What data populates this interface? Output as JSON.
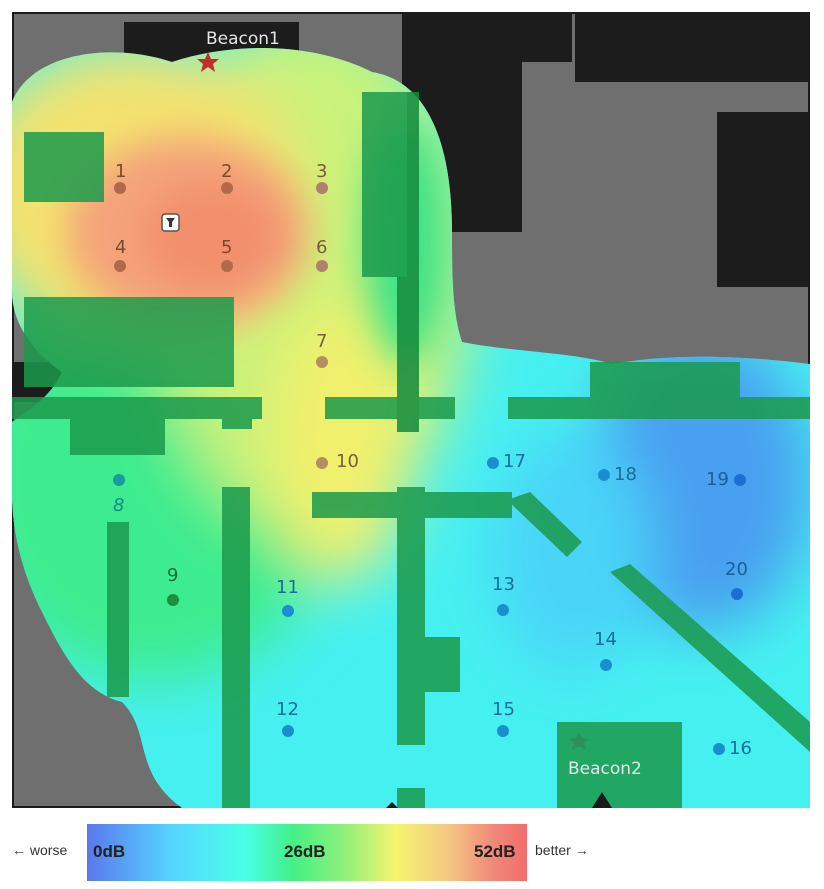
{
  "map": {
    "beacons": [
      {
        "id": "beacon1",
        "label": "Beacon1"
      },
      {
        "id": "beacon2",
        "label": "Beacon2"
      }
    ],
    "points": [
      "1",
      "2",
      "3",
      "4",
      "5",
      "6",
      "7",
      "8",
      "9",
      "10",
      "11",
      "12",
      "13",
      "14",
      "15",
      "16",
      "17",
      "18",
      "19",
      "20"
    ],
    "colors": {
      "wall_dark": "#1c1c1c",
      "floor_gray": "#707070",
      "strong_signal": "#f0906a",
      "medium_signal": "#f4f06c",
      "good_signal": "#3ff08a",
      "weak_signal": "#44f4f4",
      "poor_signal": "#4aa0f0",
      "point_strong": "#b06a4a",
      "point_mid": "#1f8f3f",
      "point_weak": "#1a8fd0",
      "beacon_marker": "#c0302a"
    },
    "user_icon": "user-location-icon"
  },
  "legend": {
    "left_text": "← worse",
    "right_text": "better →",
    "ticks": {
      "min": "0dB",
      "mid": "26dB",
      "max": "52dB"
    }
  }
}
